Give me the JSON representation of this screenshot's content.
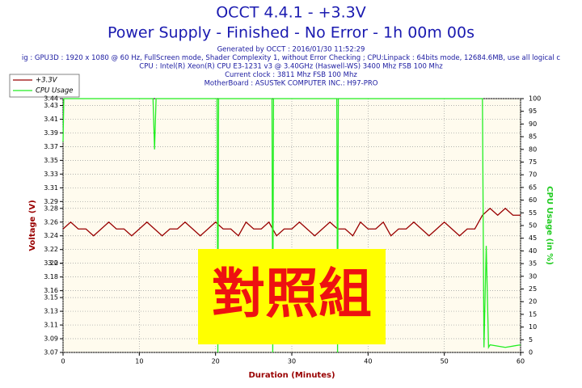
{
  "chart_data": {
    "type": "line",
    "title": "OCCT 4.4.1 - +3.3V",
    "subtitle": "Power Supply - Finished - No Error - 1h 00m 00s",
    "info_lines": [
      "Generated by OCCT : 2016/01/30 11:52:29",
      "ig : GPU3D : 1920 x 1080 @ 60 Hz, FullScreen mode, Shader Complexity 1, without Error Checking ; CPU:Linpack : 64bits mode, 12684.6MB, use all logical c",
      "CPU : Intel(R) Xeon(R) CPU E3-1231 v3 @ 3.40GHz (Haswell-WS) 3400 Mhz FSB 100 Mhz",
      "Current clock : 3811 Mhz FSB 100 Mhz",
      "MotherBoard : ASUSTeK COMPUTER INC.: H97-PRO"
    ],
    "x_label": "Duration (Minutes)",
    "y_label": "Voltage (V)",
    "y2_label": "CPU Usage (in %)",
    "overlay_label": "對照組",
    "xlim": [
      0,
      60
    ],
    "xticks": [
      0,
      10,
      20,
      30,
      40,
      50,
      60
    ],
    "ylim": [
      3.07,
      3.44
    ],
    "yticks": [
      3.07,
      3.09,
      3.11,
      3.13,
      3.15,
      3.16,
      3.18,
      3.2,
      {
        "value": 3.2,
        "label": "3.20"
      },
      3.22,
      3.24,
      3.26,
      3.28,
      3.29,
      3.31,
      3.33,
      3.35,
      3.37,
      3.39,
      3.41,
      3.43,
      3.44
    ],
    "y2lim": [
      0,
      100
    ],
    "y2ticks": [
      0,
      5,
      10,
      15,
      20,
      25,
      30,
      35,
      40,
      45,
      50,
      55,
      60,
      65,
      70,
      75,
      80,
      85,
      90,
      95,
      100
    ],
    "grid": true,
    "legend": "top-left",
    "series": [
      {
        "name": "+3.3V",
        "color": "#990000",
        "x": [
          0,
          1,
          2,
          3,
          4,
          5,
          6,
          7,
          8,
          9,
          10,
          11,
          12,
          13,
          14,
          15,
          16,
          17,
          18,
          19,
          20,
          21,
          22,
          23,
          24,
          25,
          26,
          27,
          28,
          29,
          30,
          31,
          32,
          33,
          34,
          35,
          36,
          37,
          38,
          39,
          40,
          41,
          42,
          43,
          44,
          45,
          46,
          47,
          48,
          49,
          50,
          51,
          52,
          53,
          54,
          55,
          56,
          57,
          58,
          59,
          60
        ],
        "values": [
          3.25,
          3.26,
          3.25,
          3.25,
          3.24,
          3.25,
          3.26,
          3.25,
          3.25,
          3.24,
          3.25,
          3.26,
          3.25,
          3.24,
          3.25,
          3.25,
          3.26,
          3.25,
          3.24,
          3.25,
          3.26,
          3.25,
          3.25,
          3.24,
          3.26,
          3.25,
          3.25,
          3.26,
          3.24,
          3.25,
          3.25,
          3.26,
          3.25,
          3.24,
          3.25,
          3.26,
          3.25,
          3.25,
          3.24,
          3.26,
          3.25,
          3.25,
          3.26,
          3.24,
          3.25,
          3.25,
          3.26,
          3.25,
          3.24,
          3.25,
          3.26,
          3.25,
          3.24,
          3.25,
          3.25,
          3.27,
          3.28,
          3.27,
          3.28,
          3.27,
          3.27
        ]
      },
      {
        "name": "CPU Usage",
        "color": "#22ee22",
        "axis": "y2",
        "x": [
          0,
          0.1,
          0.5,
          11.8,
          12,
          12.2,
          20.2,
          20.3,
          20.4,
          27.4,
          27.5,
          27.6,
          35.9,
          36,
          36.1,
          55,
          55.2,
          55.5,
          55.8,
          56,
          58,
          60
        ],
        "values": [
          83,
          100,
          100,
          100,
          80,
          100,
          100,
          0,
          100,
          100,
          0,
          100,
          100,
          0,
          100,
          100,
          2,
          42,
          2,
          3,
          2,
          3
        ]
      }
    ]
  }
}
